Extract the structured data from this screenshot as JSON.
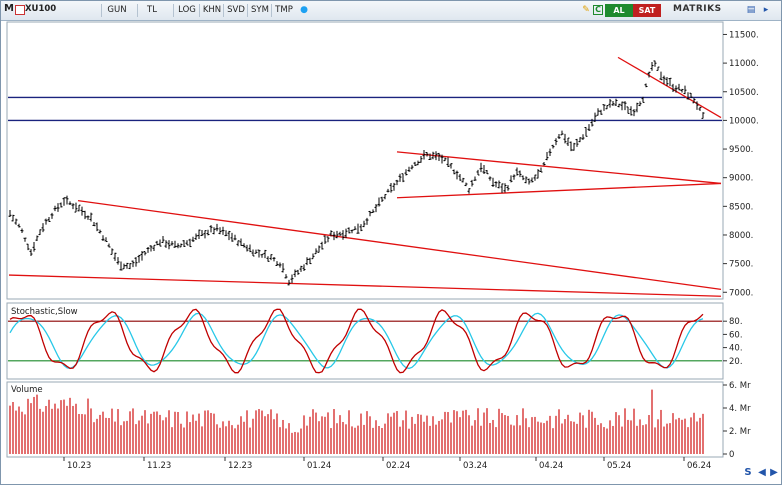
{
  "toolbar": {
    "menu_glyph": "M",
    "symbol": "XU100",
    "buttons": [
      {
        "label": "GUN"
      },
      {
        "label": "TL"
      },
      {
        "label": "LOG"
      },
      {
        "label": "KHN"
      },
      {
        "label": "SVD"
      },
      {
        "label": "SYM"
      },
      {
        "label": "TMP"
      }
    ],
    "buy_label": "AL",
    "sell_label": "SAT",
    "brand": "MATRIKS",
    "icons": [
      "pencil-icon",
      "copy-icon",
      "refresh-icon",
      "twitter-icon",
      "chart-mode-icon",
      "more-icon"
    ]
  },
  "price_panel": {
    "y_ticks": [
      "11500.",
      "11000.",
      "10500.",
      "10000.",
      "9500.",
      "9000.",
      "8500.",
      "8000.",
      "7500.",
      "7000."
    ],
    "y_tick_values": [
      11500,
      11000,
      10500,
      10000,
      9500,
      9000,
      8500,
      8000,
      7500,
      7000
    ]
  },
  "stochastic_panel": {
    "title": "Stochastic,Slow",
    "y_ticks": [
      "80.",
      "60.",
      "40.",
      "20."
    ],
    "upper_level": 80,
    "lower_level": 20
  },
  "volume_panel": {
    "title": "Volume",
    "y_ticks": [
      "6. Mr",
      "4. Mr",
      "2. Mr",
      "0"
    ]
  },
  "x_axis": {
    "labels": [
      "10.23",
      "11.23",
      "12.23",
      "01.24",
      "02.24",
      "03.24",
      "04.24",
      "05.24",
      "06.24"
    ]
  },
  "colors": {
    "price_bars": "#000000",
    "trendline": "#e01010",
    "support_line": "#1a237e",
    "stoch_k": "#c00000",
    "stoch_d": "#28c8e8",
    "stoch_upper": "#8b0000",
    "stoch_lower": "#1b8a2a",
    "volume": "#d01010"
  },
  "chart_data": {
    "type": "line",
    "y_range": [
      6900,
      11700
    ],
    "horizontal_levels": [
      10400,
      10000
    ],
    "trendlines": [
      {
        "from": [
          "10.23",
          8600
        ],
        "to": [
          "06.24",
          7050
        ]
      },
      {
        "from": [
          "09.23",
          7300
        ],
        "to": [
          "06.24",
          6930
        ]
      },
      {
        "from": [
          "02.24",
          9450
        ],
        "to": [
          "06.24",
          8900
        ]
      },
      {
        "from": [
          "02.24",
          8650
        ],
        "to": [
          "06.24",
          8900
        ]
      },
      {
        "from": [
          "05.24",
          11100
        ],
        "to": [
          "06.24",
          10050
        ]
      }
    ]
  }
}
